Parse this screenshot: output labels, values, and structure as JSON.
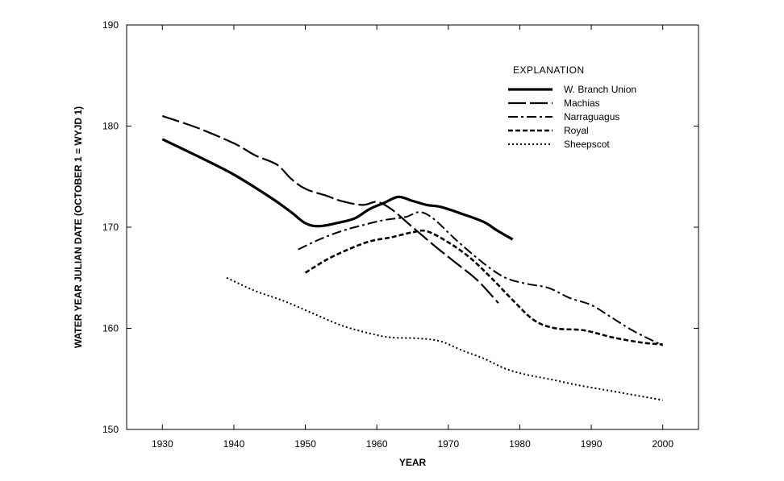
{
  "chart_data": {
    "type": "line",
    "title": "",
    "xlabel": "YEAR",
    "ylabel": "WATER YEAR JULIAN DATE (OCTOBER 1 = WYJD 1)",
    "xlim": [
      1925,
      2005
    ],
    "ylim": [
      150,
      190
    ],
    "xticks": [
      1930,
      1940,
      1950,
      1960,
      1970,
      1980,
      1990,
      2000
    ],
    "yticks": [
      150,
      160,
      170,
      180,
      190
    ],
    "grid": false,
    "legend": {
      "title": "EXPLANATION",
      "position": "top-right"
    },
    "series": [
      {
        "name": "W. Branch Union",
        "style": "thick-solid",
        "points": [
          [
            1930,
            178.7
          ],
          [
            1935,
            177.0
          ],
          [
            1940,
            175.2
          ],
          [
            1945,
            173.0
          ],
          [
            1948,
            171.5
          ],
          [
            1950,
            170.4
          ],
          [
            1952,
            170.1
          ],
          [
            1955,
            170.5
          ],
          [
            1957,
            170.9
          ],
          [
            1959,
            171.8
          ],
          [
            1961,
            172.4
          ],
          [
            1963,
            173.0
          ],
          [
            1965,
            172.6
          ],
          [
            1967,
            172.2
          ],
          [
            1969,
            172.0
          ],
          [
            1972,
            171.3
          ],
          [
            1975,
            170.5
          ],
          [
            1977,
            169.6
          ],
          [
            1979,
            168.8
          ]
        ]
      },
      {
        "name": "Machias",
        "style": "long-dash",
        "points": [
          [
            1930,
            181.0
          ],
          [
            1935,
            179.8
          ],
          [
            1940,
            178.3
          ],
          [
            1943,
            177.1
          ],
          [
            1946,
            176.2
          ],
          [
            1948,
            174.8
          ],
          [
            1950,
            173.8
          ],
          [
            1953,
            173.1
          ],
          [
            1955,
            172.6
          ],
          [
            1958,
            172.2
          ],
          [
            1960,
            172.5
          ],
          [
            1962,
            171.8
          ],
          [
            1965,
            170.0
          ],
          [
            1968,
            168.2
          ],
          [
            1971,
            166.5
          ],
          [
            1974,
            164.8
          ],
          [
            1977,
            162.5
          ]
        ]
      },
      {
        "name": "Narraguagus",
        "style": "dash-dot",
        "points": [
          [
            1949,
            167.8
          ],
          [
            1952,
            168.8
          ],
          [
            1955,
            169.6
          ],
          [
            1958,
            170.2
          ],
          [
            1961,
            170.7
          ],
          [
            1964,
            171.0
          ],
          [
            1966,
            171.5
          ],
          [
            1968,
            170.8
          ],
          [
            1971,
            168.8
          ],
          [
            1975,
            166.4
          ],
          [
            1978,
            165.0
          ],
          [
            1981,
            164.4
          ],
          [
            1984,
            164.0
          ],
          [
            1987,
            163.0
          ],
          [
            1990,
            162.3
          ],
          [
            1993,
            161.0
          ],
          [
            1996,
            159.7
          ],
          [
            2000,
            158.3
          ]
        ]
      },
      {
        "name": "Royal",
        "style": "short-dash",
        "points": [
          [
            1950,
            165.5
          ],
          [
            1953,
            166.8
          ],
          [
            1956,
            167.8
          ],
          [
            1959,
            168.6
          ],
          [
            1962,
            169.0
          ],
          [
            1965,
            169.5
          ],
          [
            1967,
            169.6
          ],
          [
            1970,
            168.5
          ],
          [
            1973,
            167.0
          ],
          [
            1976,
            165.0
          ],
          [
            1979,
            162.8
          ],
          [
            1982,
            160.8
          ],
          [
            1985,
            160.0
          ],
          [
            1989,
            159.8
          ],
          [
            1993,
            159.1
          ],
          [
            1997,
            158.6
          ],
          [
            2000,
            158.4
          ]
        ]
      },
      {
        "name": "Sheepscot",
        "style": "dotted",
        "points": [
          [
            1939,
            165.0
          ],
          [
            1943,
            163.7
          ],
          [
            1947,
            162.7
          ],
          [
            1951,
            161.5
          ],
          [
            1955,
            160.3
          ],
          [
            1959,
            159.5
          ],
          [
            1962,
            159.1
          ],
          [
            1966,
            159.0
          ],
          [
            1969,
            158.7
          ],
          [
            1972,
            157.8
          ],
          [
            1975,
            157.0
          ],
          [
            1978,
            156.0
          ],
          [
            1981,
            155.4
          ],
          [
            1984,
            155.0
          ],
          [
            1988,
            154.4
          ],
          [
            1992,
            153.9
          ],
          [
            1996,
            153.4
          ],
          [
            2000,
            152.9
          ]
        ]
      }
    ]
  }
}
